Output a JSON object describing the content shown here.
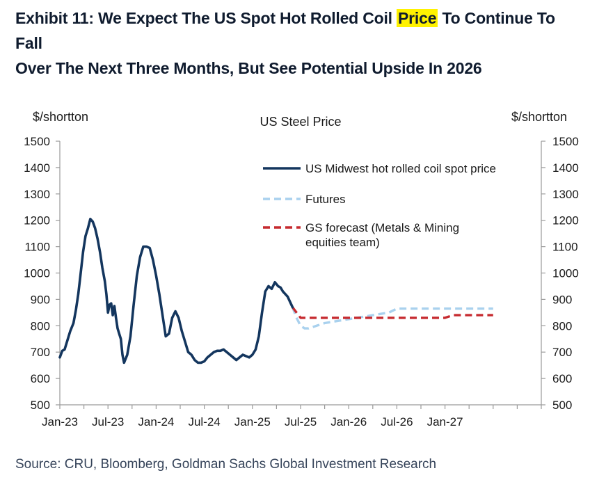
{
  "exhibit": {
    "line1_pre": "Exhibit 11: We Expect The US Spot Hot Rolled Coil ",
    "line1_highlight": "Price",
    "line1_post": " To Continue To Fall",
    "line2": "Over The Next Three Months, But See Potential Upside In 2026"
  },
  "source": "Source: CRU, Bloomberg, Goldman Sachs Global Investment Research",
  "chart_data": {
    "type": "line",
    "title": "US Steel Price",
    "ylabel_left": "$/shortton",
    "ylabel_right": "$/shortton",
    "ylim": [
      500,
      1500
    ],
    "yticks": [
      500,
      600,
      700,
      800,
      900,
      1000,
      1100,
      1200,
      1300,
      1400,
      1500
    ],
    "xlim": [
      0,
      60
    ],
    "xticks": [
      {
        "x": 0,
        "label": "Jan-23"
      },
      {
        "x": 6,
        "label": "Jul-23"
      },
      {
        "x": 12,
        "label": "Jan-24"
      },
      {
        "x": 18,
        "label": "Jul-24"
      },
      {
        "x": 24,
        "label": "Jan-25"
      },
      {
        "x": 30,
        "label": "Jul-25"
      },
      {
        "x": 36,
        "label": "Jan-26"
      },
      {
        "x": 42,
        "label": "Jul-26"
      },
      {
        "x": 48,
        "label": "Jan-27"
      }
    ],
    "x_unit": "months since Jan-23",
    "legend": [
      {
        "key": "spot",
        "label": "US Midwest hot rolled coil spot price",
        "color": "#14365e",
        "dash": "solid"
      },
      {
        "key": "futures",
        "label": "Futures",
        "color": "#a9d1ee",
        "dash": "dashed"
      },
      {
        "key": "gs",
        "label_lines": [
          "GS forecast (Metals & Mining",
          "equities team)"
        ],
        "color": "#c62a2f",
        "dash": "dashed"
      }
    ],
    "series": [
      {
        "key": "spot",
        "name": "US Midwest hot rolled coil spot price",
        "x": [
          0,
          0.3,
          0.6,
          1.0,
          1.3,
          1.7,
          2.0,
          2.3,
          2.6,
          2.9,
          3.2,
          3.5,
          3.8,
          4.1,
          4.4,
          4.7,
          5.0,
          5.3,
          5.6,
          5.8,
          6.0,
          6.2,
          6.4,
          6.6,
          6.8,
          7.0,
          7.2,
          7.4,
          7.6,
          7.8,
          8.0,
          8.4,
          8.8,
          9.2,
          9.6,
          10.0,
          10.4,
          10.8,
          11.2,
          11.6,
          12.0,
          12.4,
          12.8,
          13.2,
          13.6,
          14.0,
          14.4,
          14.8,
          15.2,
          15.6,
          16.0,
          16.4,
          16.8,
          17.2,
          17.6,
          18.0,
          18.4,
          18.8,
          19.2,
          19.6,
          20.0,
          20.4,
          20.8,
          21.2,
          21.6,
          22.0,
          22.4,
          22.8,
          23.2,
          23.6,
          24.0,
          24.4,
          24.8,
          25.2,
          25.6,
          26.0,
          26.4,
          26.8,
          27.2,
          27.5,
          27.8,
          28.1,
          28.4,
          28.7,
          29.0
        ],
        "y": [
          680,
          705,
          710,
          750,
          780,
          810,
          860,
          920,
          1000,
          1080,
          1140,
          1170,
          1205,
          1195,
          1170,
          1130,
          1080,
          1020,
          970,
          920,
          850,
          880,
          885,
          840,
          875,
          830,
          790,
          770,
          750,
          690,
          660,
          690,
          760,
          880,
          990,
          1060,
          1100,
          1100,
          1095,
          1050,
          990,
          920,
          840,
          760,
          770,
          830,
          855,
          830,
          780,
          740,
          700,
          690,
          670,
          660,
          660,
          665,
          680,
          690,
          700,
          705,
          705,
          710,
          700,
          690,
          680,
          670,
          680,
          690,
          685,
          680,
          690,
          710,
          760,
          850,
          930,
          950,
          940,
          965,
          950,
          945,
          930,
          920,
          910,
          890,
          870
        ]
      },
      {
        "key": "futures",
        "name": "Futures",
        "x": [
          29.0,
          29.5,
          30.0,
          30.5,
          31.0,
          31.5,
          32.0,
          33.0,
          34.0,
          35.0,
          36.0,
          37.0,
          38.0,
          39.0,
          40.0,
          41.0,
          42.0,
          43.0,
          44.0,
          45.0,
          46.0,
          47.0,
          48.0,
          49.0,
          50.0,
          51.0,
          52.0,
          53.0,
          54.0
        ],
        "y": [
          870,
          830,
          800,
          790,
          790,
          795,
          800,
          810,
          815,
          820,
          825,
          830,
          835,
          840,
          845,
          850,
          865,
          865,
          865,
          865,
          865,
          865,
          865,
          865,
          865,
          865,
          865,
          865,
          865
        ]
      },
      {
        "key": "gs",
        "name": "GS forecast (Metals & Mining equities team)",
        "x": [
          29.0,
          30.0,
          31.0,
          32.0,
          33.0,
          34.0,
          35.0,
          36.0,
          37.0,
          38.0,
          39.0,
          40.0,
          41.0,
          42.0,
          43.0,
          44.0,
          45.0,
          46.0,
          47.0,
          48.0,
          49.0,
          50.0,
          51.0,
          52.0,
          53.0,
          54.0
        ],
        "y": [
          870,
          830,
          830,
          830,
          830,
          830,
          830,
          830,
          830,
          830,
          830,
          830,
          830,
          830,
          830,
          830,
          830,
          830,
          830,
          830,
          840,
          840,
          840,
          840,
          840,
          840
        ]
      }
    ]
  }
}
